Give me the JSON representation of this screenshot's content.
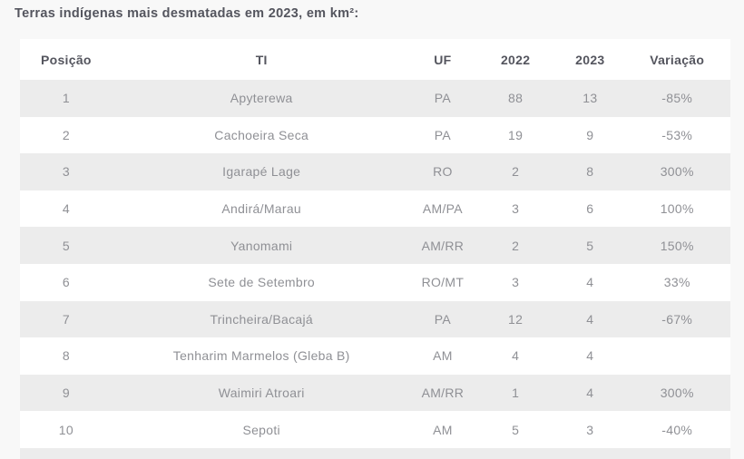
{
  "title": "Terras indígenas mais desmatadas em 2023, em km²:",
  "chart_data": {
    "type": "table",
    "title": "Terras indígenas mais desmatadas em 2023, em km²",
    "columns": [
      "Posição",
      "TI",
      "UF",
      "2022",
      "2023",
      "Variação"
    ],
    "rows": [
      [
        "1",
        "Apyterewa",
        "PA",
        "88",
        "13",
        "-85%"
      ],
      [
        "2",
        "Cachoeira Seca",
        "PA",
        "19",
        "9",
        "-53%"
      ],
      [
        "3",
        "Igarapé Lage",
        "RO",
        "2",
        "8",
        "300%"
      ],
      [
        "4",
        "Andirá/Marau",
        "AM/PA",
        "3",
        "6",
        "100%"
      ],
      [
        "5",
        "Yanomami",
        "AM/RR",
        "2",
        "5",
        "150%"
      ],
      [
        "6",
        "Sete de Setembro",
        "RO/MT",
        "3",
        "4",
        "33%"
      ],
      [
        "7",
        "Trincheira/Bacajá",
        "PA",
        "12",
        "4",
        "-67%"
      ],
      [
        "8",
        "Tenharim Marmelos (Gleba B)",
        "AM",
        "4",
        "4",
        ""
      ],
      [
        "9",
        "Waimiri Atroari",
        "AM/RR",
        "1",
        "4",
        "300%"
      ],
      [
        "10",
        "Sepoti",
        "AM",
        "5",
        "3",
        "-40%"
      ]
    ]
  },
  "colors": {
    "page_background": "#f8f8f8",
    "table_background": "#ffffff",
    "striped_row_background": "#ececec",
    "heading_text": "#54555e",
    "body_text": "#8f9095"
  }
}
